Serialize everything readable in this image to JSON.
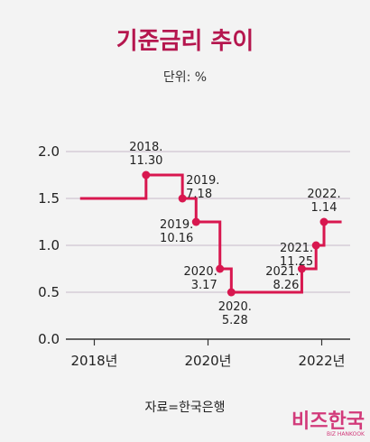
{
  "chart_data": {
    "type": "line",
    "title": "기준금리 추이",
    "unit_label": "단위: %",
    "source": "자료=한국은행",
    "y_ticks": [
      "0.0",
      "0.5",
      "1.0",
      "1.5",
      "2.0"
    ],
    "ylim": [
      0,
      2.0
    ],
    "x_ticks": [
      {
        "label": "2018년",
        "year": 2018.0
      },
      {
        "label": "2020년",
        "year": 2020.0
      },
      {
        "label": "2022년",
        "year": 2022.0
      }
    ],
    "grid": true,
    "line_color": "#d8174f",
    "series": [
      {
        "step": true,
        "x": [
          2017.75,
          2018.91,
          2019.55,
          2019.79,
          2020.21,
          2020.41,
          2021.65,
          2021.9,
          2022.04,
          2022.35
        ],
        "values": [
          1.5,
          1.75,
          1.5,
          1.25,
          0.75,
          0.5,
          0.75,
          1.0,
          1.25,
          1.25
        ]
      }
    ],
    "annotations": [
      {
        "label": "2018.\n11.30",
        "x": 2018.91,
        "y": 1.75,
        "side": "above"
      },
      {
        "label": "2019.\n7.18",
        "x": 2019.55,
        "y": 1.5,
        "side": "above-right"
      },
      {
        "label": "2019.\n10.16",
        "x": 2019.79,
        "y": 1.25,
        "side": "left"
      },
      {
        "label": "2020.\n3.17",
        "x": 2020.21,
        "y": 0.75,
        "side": "left"
      },
      {
        "label": "2020.\n5.28",
        "x": 2020.41,
        "y": 0.5,
        "side": "below"
      },
      {
        "label": "2021.\n8.26",
        "x": 2021.65,
        "y": 0.75,
        "side": "left"
      },
      {
        "label": "2021.\n11.25",
        "x": 2021.9,
        "y": 1.0,
        "side": "left"
      },
      {
        "label": "2022.\n1.14",
        "x": 2022.04,
        "y": 1.25,
        "side": "above"
      }
    ]
  },
  "logo": {
    "main": "비즈한국",
    "sub": "BIZ HANKOOK"
  }
}
